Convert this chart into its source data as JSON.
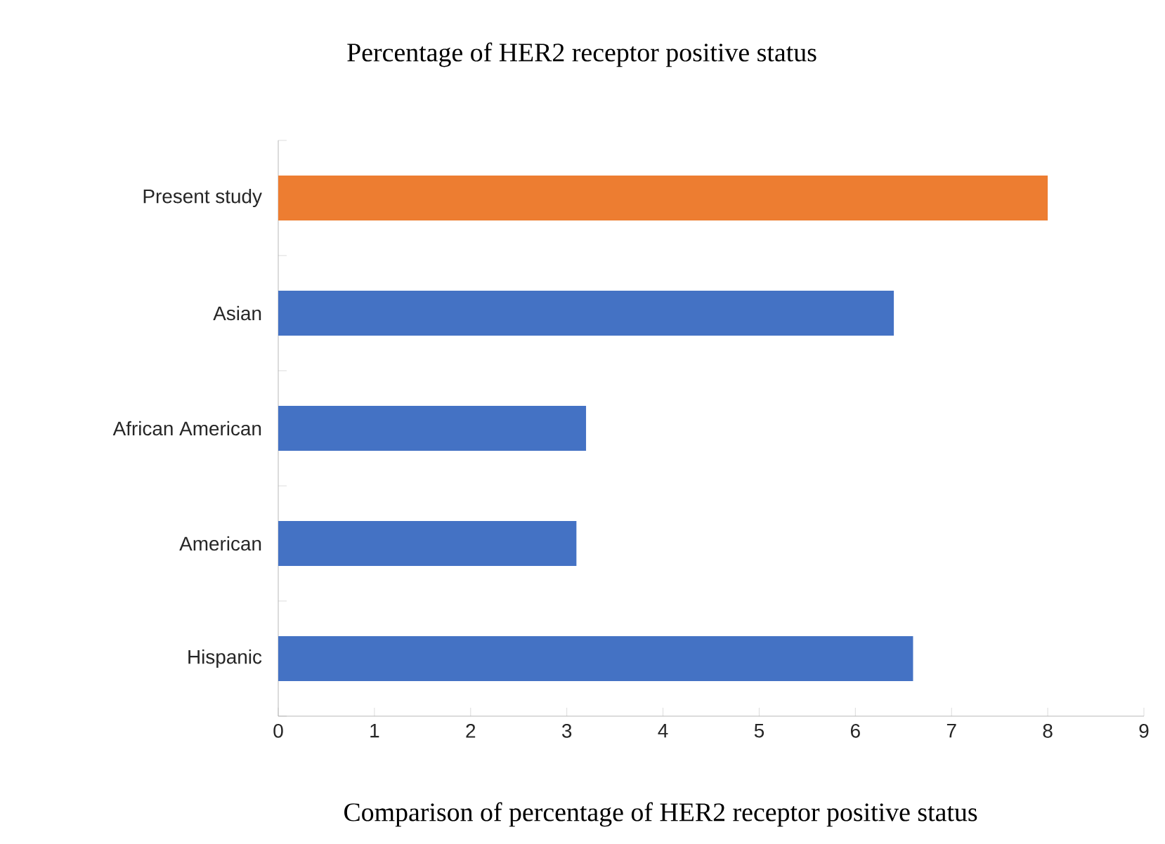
{
  "chart_data": {
    "type": "bar",
    "orientation": "horizontal",
    "title": "Percentage of HER2 receptor positive status",
    "xlabel": "Comparison of percentage of HER2 receptor positive status",
    "categories": [
      "Present study",
      "Asian",
      "African American",
      "American",
      "Hispanic"
    ],
    "values": [
      8,
      6.4,
      3.2,
      3.1,
      6.6
    ],
    "colors": [
      "#ed7d31",
      "#4472c4",
      "#4472c4",
      "#4472c4",
      "#4472c4"
    ],
    "xlim": [
      0,
      9
    ],
    "xticks": [
      0,
      1,
      2,
      3,
      4,
      5,
      6,
      7,
      8,
      9
    ],
    "grid": false
  }
}
